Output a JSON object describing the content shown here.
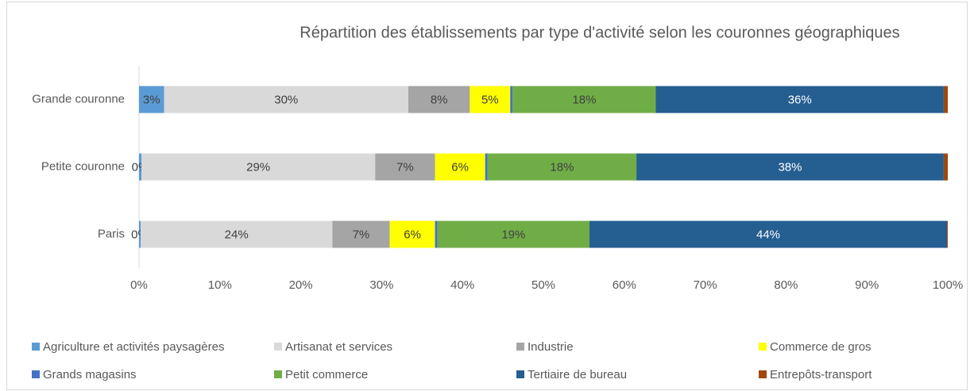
{
  "chart_data": {
    "type": "stacked-bar-horizontal",
    "title": "Répartition des établissements par type d'activité selon les couronnes géographiques",
    "categories": [
      "Grande couronne",
      "Petite couronne",
      "Paris"
    ],
    "series": [
      {
        "name": "Agriculture et activités paysagères",
        "color": "#5b9bd5",
        "values": [
          3.1,
          0.3,
          0.2
        ],
        "value_labels": [
          "3%",
          "0%",
          "0%"
        ]
      },
      {
        "name": "Artisanat et services",
        "color": "#d9d9d9",
        "values": [
          30.2,
          28.9,
          23.7
        ],
        "value_labels": [
          "30%",
          "29%",
          "24%"
        ]
      },
      {
        "name": "Industrie",
        "color": "#a5a5a5",
        "values": [
          7.6,
          7.4,
          7.1
        ],
        "value_labels": [
          "8%",
          "7%",
          "7%"
        ]
      },
      {
        "name": "Commerce de gros",
        "color": "#ffff00",
        "values": [
          5.0,
          6.2,
          5.6
        ],
        "value_labels": [
          "5%",
          "6%",
          "6%"
        ]
      },
      {
        "name": "Grands magasins",
        "color": "#4472c4",
        "values": [
          0.3,
          0.3,
          0.3
        ]
      },
      {
        "name": "Petit commerce",
        "color": "#70ad47",
        "values": [
          17.7,
          18.4,
          18.8
        ],
        "value_labels": [
          "18%",
          "18%",
          "19%"
        ]
      },
      {
        "name": "Tertiaire de bureau",
        "color": "#255e91",
        "values": [
          35.6,
          38.0,
          44.2
        ],
        "value_labels": [
          "36%",
          "38%",
          "44%"
        ]
      },
      {
        "name": "Entrepôts-transport",
        "color": "#9e480e",
        "values": [
          0.5,
          0.5,
          0.1
        ]
      }
    ],
    "xlim": [
      0,
      100
    ],
    "xticks": [
      {
        "value": 0,
        "label": "0%"
      },
      {
        "value": 10,
        "label": "10%"
      },
      {
        "value": 20,
        "label": "20%"
      },
      {
        "value": 30,
        "label": "30%"
      },
      {
        "value": 40,
        "label": "40%"
      },
      {
        "value": 50,
        "label": "50%"
      },
      {
        "value": 60,
        "label": "60%"
      },
      {
        "value": 70,
        "label": "70%"
      },
      {
        "value": 80,
        "label": "80%"
      },
      {
        "value": 90,
        "label": "90%"
      },
      {
        "value": 100,
        "label": "100%"
      }
    ],
    "grid": false,
    "legend": "bottom"
  }
}
